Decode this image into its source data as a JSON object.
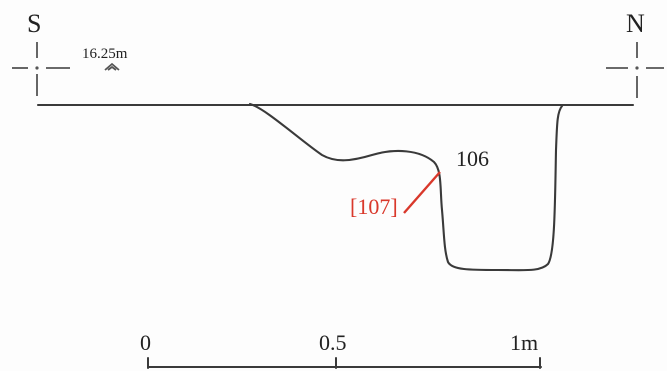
{
  "section": {
    "orientation_left": "S",
    "orientation_right": "N",
    "level_label": "16.25m",
    "context_label": "106",
    "cut_label": "[107]"
  },
  "scale_bar": {
    "tick_0": "0",
    "tick_mid": "0.5",
    "tick_end": "1m"
  },
  "colors": {
    "ink": "#3a3a3a",
    "annotation_red": "#d9382b"
  }
}
